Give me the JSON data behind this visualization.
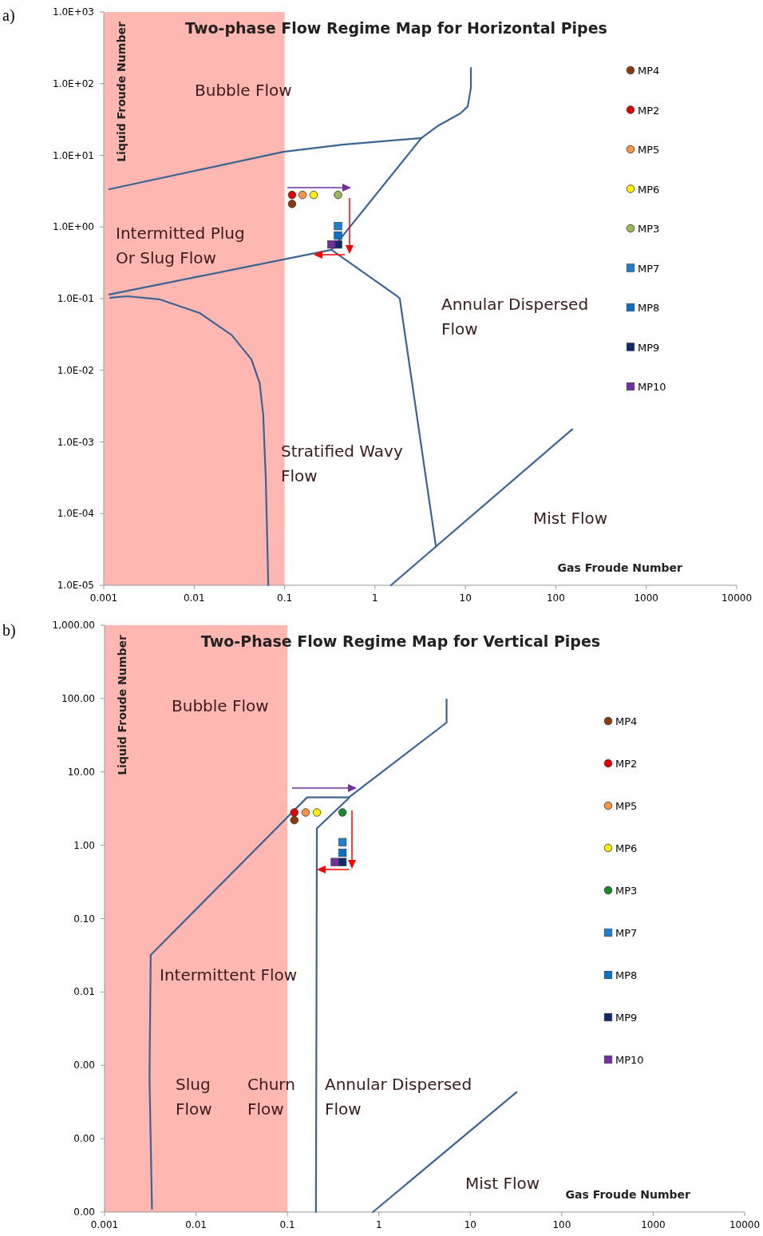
{
  "chart_data": [
    {
      "type": "scatter",
      "title": "Two-phase Flow Regime Map for Horizontal Pipes",
      "xlabel": "Gas Froude Number",
      "ylabel": "Liquid Froude Number",
      "log": "xy",
      "legend": "right",
      "grid": false,
      "xlim": [
        0.001,
        10000
      ],
      "xticks": [
        0.001,
        0.01,
        0.1,
        1,
        10,
        100,
        1000,
        10000
      ],
      "ylim": [
        1e-05,
        1000
      ],
      "yticks": [
        {
          "value": 1e-05,
          "label": "1.0E-05"
        },
        {
          "value": 0.0001,
          "label": "1.0E-04"
        },
        {
          "value": 0.001,
          "label": "1.0E-03"
        },
        {
          "value": 0.01,
          "label": "1.0E-02"
        },
        {
          "value": 0.1,
          "label": "1.0E-01"
        },
        {
          "value": 1,
          "label": "1.0E+00"
        },
        {
          "value": 10,
          "label": "1.0E+01"
        },
        {
          "value": 100,
          "label": "1.0E+02"
        },
        {
          "value": 1000,
          "label": "1.0E+03"
        }
      ],
      "bands": [
        {
          "axis": "x",
          "from": 0.001,
          "to": 0.1,
          "color": "#ffb7b2"
        }
      ],
      "annotations": [
        "a)",
        "Bubble Flow",
        "Intermitted Plug\nOr Slug Flow",
        "Annular Dispersed\nFlow",
        "Stratified Wavy\nFlow",
        "Mist Flow"
      ],
      "series": [
        {
          "type": "line",
          "color": "#3b6494",
          "marker": "none",
          "x": [
            0.00115,
            0.097,
            0.44,
            3.26
          ],
          "values": [
            3.36,
            11.2,
            14.1,
            17.4
          ]
        },
        {
          "type": "line",
          "color": "#3b6494",
          "marker": "none",
          "x": [
            0.33,
            3.26,
            4.9,
            8.8,
            10.6,
            11.5,
            11.5
          ],
          "values": [
            0.48,
            17.4,
            25.5,
            38.5,
            48,
            87,
            166
          ]
        },
        {
          "type": "line",
          "color": "#3b6494",
          "marker": "none",
          "x": [
            0.00115,
            0.33
          ],
          "values": [
            0.114,
            0.48
          ]
        },
        {
          "type": "line",
          "color": "#3b6494",
          "marker": "none",
          "x": [
            0.33,
            1.73,
            1.88,
            4.7
          ],
          "values": [
            0.48,
            0.11,
            0.1,
            3.6e-05
          ]
        },
        {
          "type": "line",
          "color": "#3b6494",
          "marker": "none",
          "x": [
            1.5,
            152
          ],
          "values": [
            1e-05,
            0.0015
          ]
        },
        {
          "type": "line",
          "color": "#3b6494",
          "marker": "none",
          "x": [
            0.00118,
            0.00184,
            0.0041,
            0.0115,
            0.026,
            0.043,
            0.053,
            0.058,
            0.062,
            0.066
          ],
          "values": [
            0.103,
            0.108,
            0.098,
            0.063,
            0.031,
            0.0142,
            0.0066,
            0.0024,
            0.0003,
            1e-05
          ]
        },
        {
          "type": "scatter",
          "name": "MP4",
          "color": "#8b3a0e",
          "marker": "circle",
          "x": [
            0.121
          ],
          "values": [
            2.1
          ]
        },
        {
          "type": "scatter",
          "name": "MP2",
          "color": "#e50000",
          "marker": "circle",
          "x": [
            0.121
          ],
          "values": [
            2.8
          ]
        },
        {
          "type": "scatter",
          "name": "MP5",
          "color": "#f79646",
          "marker": "circle",
          "x": [
            0.158
          ],
          "values": [
            2.8
          ]
        },
        {
          "type": "scatter",
          "name": "MP6",
          "color": "#ffef00",
          "marker": "circle",
          "x": [
            0.21
          ],
          "values": [
            2.8
          ]
        },
        {
          "type": "scatter",
          "name": "MP3",
          "color": "#9bbb59",
          "marker": "circle",
          "x": [
            0.39
          ],
          "values": [
            2.8
          ]
        },
        {
          "type": "scatter",
          "name": "MP7",
          "color": "#1f80d0",
          "marker": "square",
          "x": [
            0.39
          ],
          "values": [
            1.03
          ]
        },
        {
          "type": "scatter",
          "name": "MP8",
          "color": "#0a6fc8",
          "marker": "square",
          "x": [
            0.39
          ],
          "values": [
            0.76
          ]
        },
        {
          "type": "scatter",
          "name": "MP9",
          "color": "#0f2a68",
          "marker": "square",
          "x": [
            0.39
          ],
          "values": [
            0.57
          ]
        },
        {
          "type": "scatter",
          "name": "MP10",
          "color": "#7030a0",
          "marker": "square",
          "x": [
            0.33
          ],
          "values": [
            0.57
          ]
        }
      ]
    },
    {
      "type": "scatter",
      "title": "Two-Phase Flow Regime Map for Vertical Pipes",
      "xlabel": "Gas Froude Number",
      "ylabel": "Liquid Froude Number",
      "log": "xy",
      "legend": "right",
      "grid": false,
      "xlim": [
        0.001,
        10000
      ],
      "xticks": [
        0.001,
        0.01,
        0.1,
        1,
        10,
        100,
        1000,
        10000
      ],
      "ylim": [
        1e-05,
        1000
      ],
      "yticks": [
        {
          "value": 1e-05,
          "label": "0.00"
        },
        {
          "value": 0.0001,
          "label": "0.00"
        },
        {
          "value": 0.001,
          "label": "0.00"
        },
        {
          "value": 0.01,
          "label": "0.01"
        },
        {
          "value": 0.1,
          "label": "0.10"
        },
        {
          "value": 1,
          "label": "1.00"
        },
        {
          "value": 10,
          "label": "10.00"
        },
        {
          "value": 100,
          "label": "100.00"
        },
        {
          "value": 1000,
          "label": "1,000.00"
        }
      ],
      "bands": [
        {
          "axis": "x",
          "from": 0.001,
          "to": 0.1,
          "color": "#ffb7b2"
        }
      ],
      "annotations": [
        "b)",
        "Bubble Flow",
        "Intermittent Flow",
        "Slug\nFlow",
        "Churn\nFlow",
        "Annular Dispersed\nFlow",
        "Mist Flow"
      ],
      "series": [
        {
          "type": "line",
          "color": "#3b6494",
          "marker": "none",
          "x": [
            0.0033,
            0.0031,
            0.0032,
            0.164,
            0.47,
            5.5,
            5.5
          ],
          "values": [
            1.1e-05,
            0.00068,
            0.032,
            4.5,
            4.5,
            47,
            97
          ]
        },
        {
          "type": "line",
          "color": "#3b6494",
          "marker": "none",
          "x": [
            0.205,
            0.21,
            0.47
          ],
          "values": [
            1e-05,
            1.7,
            4.4
          ]
        },
        {
          "type": "line",
          "color": "#3b6494",
          "marker": "none",
          "x": [
            0.86,
            32
          ],
          "values": [
            1e-05,
            0.00043
          ]
        },
        {
          "type": "scatter",
          "name": "MP4",
          "color": "#8b3a0e",
          "marker": "circle",
          "x": [
            0.119
          ],
          "values": [
            2.2
          ]
        },
        {
          "type": "scatter",
          "name": "MP2",
          "color": "#e50000",
          "marker": "circle",
          "x": [
            0.119
          ],
          "values": [
            2.8
          ]
        },
        {
          "type": "scatter",
          "name": "MP5",
          "color": "#f79646",
          "marker": "circle",
          "x": [
            0.158
          ],
          "values": [
            2.8
          ]
        },
        {
          "type": "scatter",
          "name": "MP6",
          "color": "#ffef00",
          "marker": "circle",
          "x": [
            0.21
          ],
          "values": [
            2.8
          ]
        },
        {
          "type": "scatter",
          "name": "MP3",
          "color": "#1a8a2a",
          "marker": "circle",
          "x": [
            0.4
          ],
          "values": [
            2.8
          ]
        },
        {
          "type": "scatter",
          "name": "MP7",
          "color": "#1f80d0",
          "marker": "square",
          "x": [
            0.4
          ],
          "values": [
            1.1
          ]
        },
        {
          "type": "scatter",
          "name": "MP8",
          "color": "#0a6fc8",
          "marker": "square",
          "x": [
            0.4
          ],
          "values": [
            0.79
          ]
        },
        {
          "type": "scatter",
          "name": "MP9",
          "color": "#0f2a68",
          "marker": "square",
          "x": [
            0.4
          ],
          "values": [
            0.59
          ]
        },
        {
          "type": "scatter",
          "name": "MP10",
          "color": "#7030a0",
          "marker": "square",
          "x": [
            0.33
          ],
          "values": [
            0.59
          ]
        }
      ]
    }
  ]
}
